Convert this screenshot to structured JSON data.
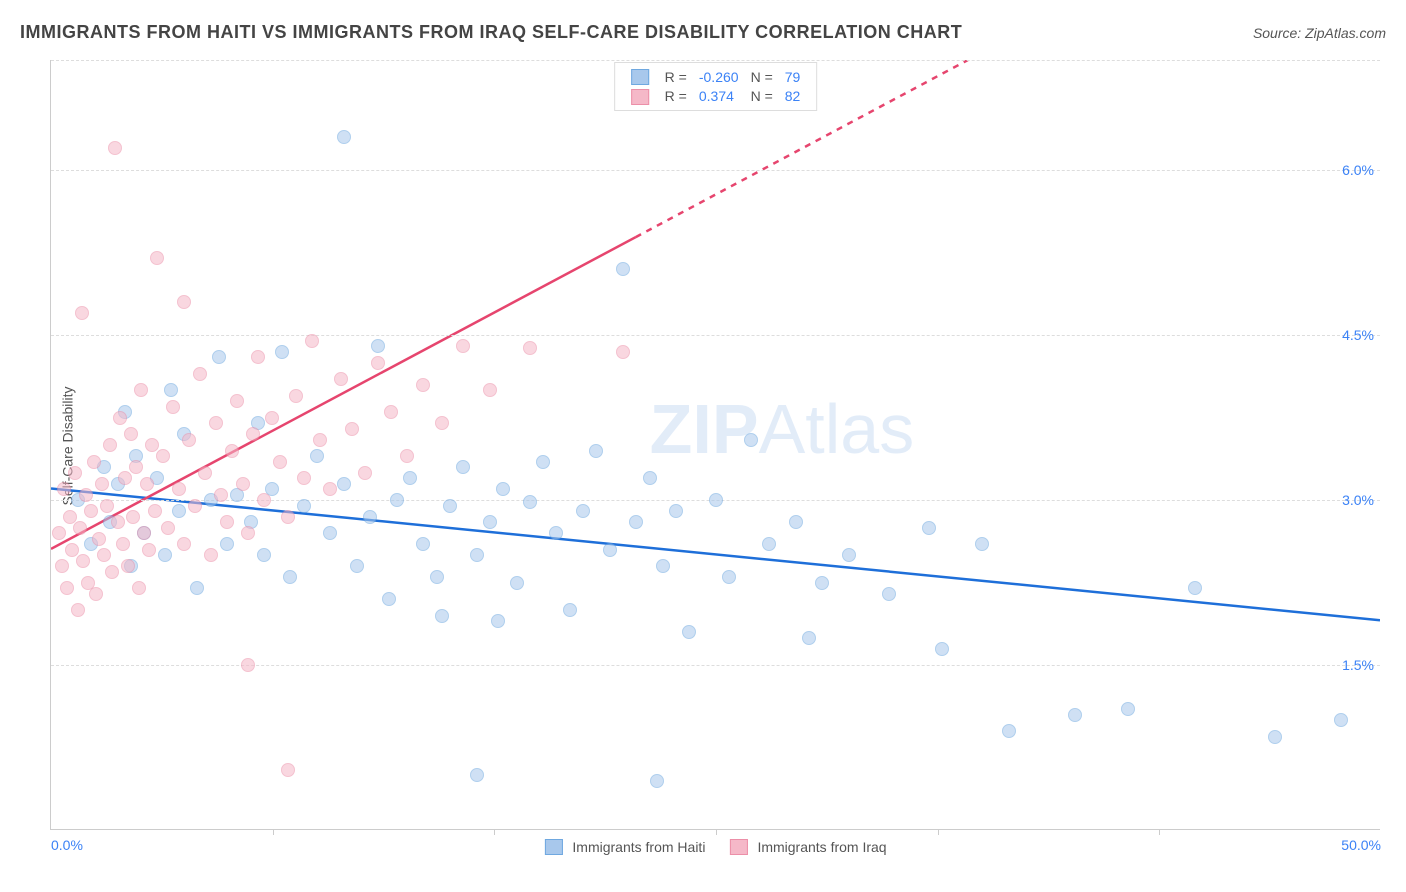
{
  "title": "IMMIGRANTS FROM HAITI VS IMMIGRANTS FROM IRAQ SELF-CARE DISABILITY CORRELATION CHART",
  "source_prefix": "Source: ",
  "source": "ZipAtlas.com",
  "ylabel": "Self-Care Disability",
  "watermark_a": "ZIP",
  "watermark_b": "Atlas",
  "chart": {
    "type": "scatter",
    "xlim": [
      0.0,
      50.0
    ],
    "ylim": [
      0.0,
      7.0
    ],
    "x_ticks_major": [
      0.0,
      50.0
    ],
    "x_tick_labels": [
      "0.0%",
      "50.0%"
    ],
    "x_ticks_minor": [
      8.33,
      16.67,
      25.0,
      33.33,
      41.67
    ],
    "y_ticks": [
      1.5,
      3.0,
      4.5,
      6.0
    ],
    "y_tick_labels": [
      "1.5%",
      "3.0%",
      "4.5%",
      "6.0%"
    ],
    "background_color": "#ffffff",
    "grid_color": "#dddddd",
    "series": [
      {
        "name": "Immigrants from Haiti",
        "color_fill": "#a8c8ec",
        "color_stroke": "#6fa8e0",
        "trend_color": "#1e6fd9",
        "trend": {
          "x1": 0,
          "y1": 3.1,
          "x2": 50,
          "y2": 1.9,
          "dashed_from_x": null
        },
        "R": "-0.260",
        "N": "79",
        "points": [
          [
            1.0,
            3.0
          ],
          [
            1.5,
            2.6
          ],
          [
            2.0,
            3.3
          ],
          [
            2.2,
            2.8
          ],
          [
            2.5,
            3.15
          ],
          [
            3.0,
            2.4
          ],
          [
            3.2,
            3.4
          ],
          [
            3.5,
            2.7
          ],
          [
            4.0,
            3.2
          ],
          [
            4.3,
            2.5
          ],
          [
            4.8,
            2.9
          ],
          [
            5.0,
            3.6
          ],
          [
            5.5,
            2.2
          ],
          [
            6.0,
            3.0
          ],
          [
            6.3,
            4.3
          ],
          [
            6.6,
            2.6
          ],
          [
            7.0,
            3.05
          ],
          [
            7.5,
            2.8
          ],
          [
            8.0,
            2.5
          ],
          [
            8.3,
            3.1
          ],
          [
            8.7,
            4.35
          ],
          [
            9.0,
            2.3
          ],
          [
            9.5,
            2.95
          ],
          [
            10.0,
            3.4
          ],
          [
            10.5,
            2.7
          ],
          [
            11.0,
            3.15
          ],
          [
            11.0,
            6.3
          ],
          [
            11.5,
            2.4
          ],
          [
            12.0,
            2.85
          ],
          [
            12.3,
            4.4
          ],
          [
            12.7,
            2.1
          ],
          [
            13.0,
            3.0
          ],
          [
            13.5,
            3.2
          ],
          [
            14.0,
            2.6
          ],
          [
            14.5,
            2.3
          ],
          [
            14.7,
            1.95
          ],
          [
            15.0,
            2.95
          ],
          [
            15.5,
            3.3
          ],
          [
            16.0,
            2.5
          ],
          [
            16.0,
            0.5
          ],
          [
            16.5,
            2.8
          ],
          [
            16.8,
            1.9
          ],
          [
            17.0,
            3.1
          ],
          [
            17.5,
            2.25
          ],
          [
            18.0,
            2.98
          ],
          [
            18.5,
            3.35
          ],
          [
            19.0,
            2.7
          ],
          [
            19.5,
            2.0
          ],
          [
            20.0,
            2.9
          ],
          [
            20.5,
            3.45
          ],
          [
            21.0,
            2.55
          ],
          [
            21.5,
            5.1
          ],
          [
            22.0,
            2.8
          ],
          [
            22.5,
            3.2
          ],
          [
            22.8,
            0.45
          ],
          [
            23.0,
            2.4
          ],
          [
            23.5,
            2.9
          ],
          [
            24.0,
            1.8
          ],
          [
            25.0,
            3.0
          ],
          [
            25.5,
            2.3
          ],
          [
            26.3,
            3.55
          ],
          [
            27.0,
            2.6
          ],
          [
            28.0,
            2.8
          ],
          [
            28.5,
            1.75
          ],
          [
            29.0,
            2.25
          ],
          [
            30.0,
            2.5
          ],
          [
            31.5,
            2.15
          ],
          [
            33.0,
            2.75
          ],
          [
            33.5,
            1.65
          ],
          [
            35.0,
            2.6
          ],
          [
            36.0,
            0.9
          ],
          [
            38.5,
            1.05
          ],
          [
            40.5,
            1.1
          ],
          [
            43.0,
            2.2
          ],
          [
            46.0,
            0.85
          ],
          [
            48.5,
            1.0
          ],
          [
            2.8,
            3.8
          ],
          [
            4.5,
            4.0
          ],
          [
            7.8,
            3.7
          ]
        ]
      },
      {
        "name": "Immigrants from Iraq",
        "color_fill": "#f5b8c8",
        "color_stroke": "#ec8fa8",
        "trend_color": "#e6456e",
        "trend": {
          "x1": 0,
          "y1": 2.55,
          "x2": 50,
          "y2": 9.0,
          "dashed_from_x": 22
        },
        "R": "0.374",
        "N": "82",
        "points": [
          [
            0.3,
            2.7
          ],
          [
            0.4,
            2.4
          ],
          [
            0.5,
            3.1
          ],
          [
            0.6,
            2.2
          ],
          [
            0.7,
            2.85
          ],
          [
            0.8,
            2.55
          ],
          [
            0.9,
            3.25
          ],
          [
            1.0,
            2.0
          ],
          [
            1.1,
            2.75
          ],
          [
            1.15,
            4.7
          ],
          [
            1.2,
            2.45
          ],
          [
            1.3,
            3.05
          ],
          [
            1.4,
            2.25
          ],
          [
            1.5,
            2.9
          ],
          [
            1.6,
            3.35
          ],
          [
            1.7,
            2.15
          ],
          [
            1.8,
            2.65
          ],
          [
            1.9,
            3.15
          ],
          [
            2.0,
            2.5
          ],
          [
            2.1,
            2.95
          ],
          [
            2.2,
            3.5
          ],
          [
            2.3,
            2.35
          ],
          [
            2.4,
            6.2
          ],
          [
            2.5,
            2.8
          ],
          [
            2.6,
            3.75
          ],
          [
            2.7,
            2.6
          ],
          [
            2.8,
            3.2
          ],
          [
            2.9,
            2.4
          ],
          [
            3.0,
            3.6
          ],
          [
            3.1,
            2.85
          ],
          [
            3.2,
            3.3
          ],
          [
            3.3,
            2.2
          ],
          [
            3.4,
            4.0
          ],
          [
            3.5,
            2.7
          ],
          [
            3.6,
            3.15
          ],
          [
            3.7,
            2.55
          ],
          [
            3.8,
            3.5
          ],
          [
            3.9,
            2.9
          ],
          [
            4.0,
            5.2
          ],
          [
            4.2,
            3.4
          ],
          [
            4.4,
            2.75
          ],
          [
            4.6,
            3.85
          ],
          [
            4.8,
            3.1
          ],
          [
            5.0,
            2.6
          ],
          [
            5.0,
            4.8
          ],
          [
            5.2,
            3.55
          ],
          [
            5.4,
            2.95
          ],
          [
            5.6,
            4.15
          ],
          [
            5.8,
            3.25
          ],
          [
            6.0,
            2.5
          ],
          [
            6.2,
            3.7
          ],
          [
            6.4,
            3.05
          ],
          [
            6.6,
            2.8
          ],
          [
            6.8,
            3.45
          ],
          [
            7.0,
            3.9
          ],
          [
            7.2,
            3.15
          ],
          [
            7.4,
            2.7
          ],
          [
            7.4,
            1.5
          ],
          [
            7.6,
            3.6
          ],
          [
            7.8,
            4.3
          ],
          [
            8.0,
            3.0
          ],
          [
            8.3,
            3.75
          ],
          [
            8.6,
            3.35
          ],
          [
            8.9,
            2.85
          ],
          [
            8.9,
            0.55
          ],
          [
            9.2,
            3.95
          ],
          [
            9.5,
            3.2
          ],
          [
            9.8,
            4.45
          ],
          [
            10.1,
            3.55
          ],
          [
            10.5,
            3.1
          ],
          [
            10.9,
            4.1
          ],
          [
            11.3,
            3.65
          ],
          [
            11.8,
            3.25
          ],
          [
            12.3,
            4.25
          ],
          [
            12.8,
            3.8
          ],
          [
            13.4,
            3.4
          ],
          [
            14.0,
            4.05
          ],
          [
            14.7,
            3.7
          ],
          [
            15.5,
            4.4
          ],
          [
            16.5,
            4.0
          ],
          [
            18.0,
            4.38
          ],
          [
            21.5,
            4.35
          ]
        ]
      }
    ]
  },
  "legend_top": {
    "R_label": "R =",
    "N_label": "N ="
  },
  "legend_bottom_labels": [
    "Immigrants from Haiti",
    "Immigrants from Iraq"
  ]
}
